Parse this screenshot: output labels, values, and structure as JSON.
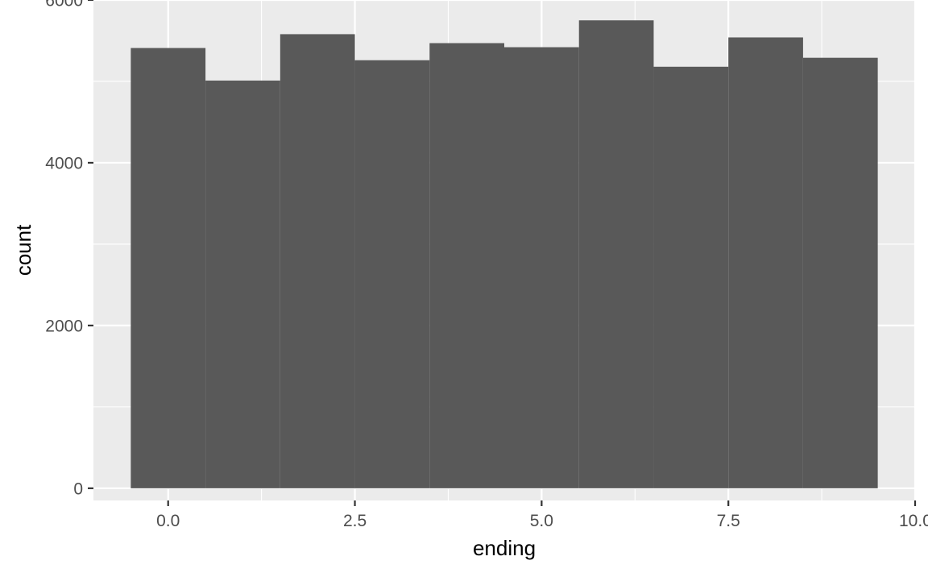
{
  "chart_data": {
    "type": "bar",
    "title": "",
    "xlabel": "ending",
    "ylabel": "count",
    "bin_width": 1,
    "x": [
      0,
      1,
      2,
      3,
      4,
      5,
      6,
      7,
      8,
      9
    ],
    "values": [
      5410,
      5010,
      5580,
      5260,
      5470,
      5420,
      5750,
      5180,
      5540,
      5290
    ],
    "xlim": [
      -1,
      10
    ],
    "ylim": [
      -150,
      6000
    ],
    "x_ticks": [
      0,
      2.5,
      5,
      7.5,
      10
    ],
    "x_tick_labels": [
      "0.0",
      "2.5",
      "5.0",
      "7.5",
      "10.0"
    ],
    "y_ticks": [
      0,
      2000,
      4000,
      6000
    ],
    "y_tick_labels": [
      "0",
      "2000",
      "4000",
      "6000"
    ],
    "grid": true,
    "legend": "none",
    "colors": {
      "panel": "#ebebeb",
      "grid": "#ffffff",
      "bar": "#595959",
      "tick": "#333333",
      "tick_text": "#4d4d4d",
      "axis_title": "#000000"
    }
  }
}
